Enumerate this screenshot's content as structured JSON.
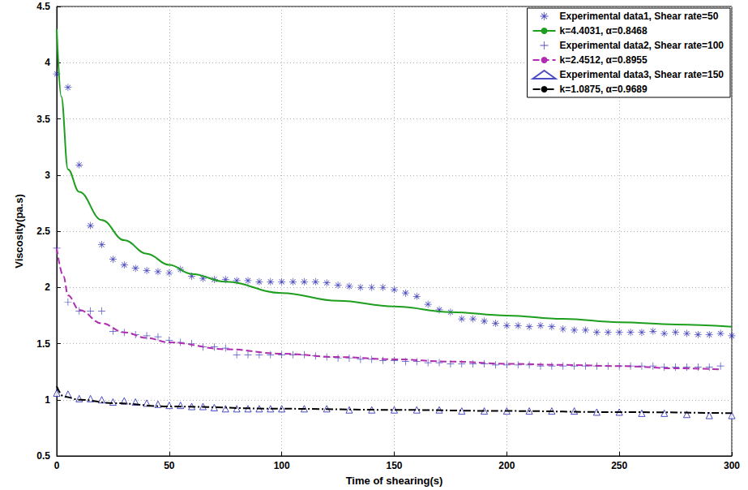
{
  "chart_data": {
    "type": "scatter",
    "x_label": "Time of shearing(s)",
    "y_label": "Viscosity(pa.s)",
    "xlim": [
      0,
      300
    ],
    "xticks": [
      0,
      50,
      100,
      150,
      200,
      250,
      300
    ],
    "ylim": [
      0.5,
      4.5
    ],
    "yticks": [
      0.5,
      1,
      1.5,
      2,
      2.5,
      3,
      3.5,
      4,
      4.5
    ],
    "grid": true,
    "legend": "top-right",
    "series": [
      {
        "name": "Experimental data1, Shear rate=50",
        "type": "scatter",
        "marker": "asterisk",
        "color": "#1f1fb4",
        "x": [
          0,
          5,
          10,
          15,
          20,
          25,
          30,
          35,
          40,
          45,
          50,
          55,
          60,
          65,
          70,
          75,
          80,
          85,
          90,
          95,
          100,
          105,
          110,
          115,
          120,
          125,
          130,
          135,
          140,
          145,
          150,
          155,
          160,
          165,
          170,
          175,
          180,
          185,
          190,
          195,
          200,
          205,
          210,
          215,
          220,
          225,
          230,
          235,
          240,
          245,
          250,
          255,
          260,
          265,
          270,
          275,
          280,
          285,
          290,
          295,
          300
        ],
        "values": [
          3.9,
          3.78,
          3.09,
          2.55,
          2.38,
          2.25,
          2.2,
          2.17,
          2.15,
          2.14,
          2.13,
          2.16,
          2.1,
          2.08,
          2.07,
          2.07,
          2.06,
          2.06,
          2.05,
          2.05,
          2.05,
          2.05,
          2.05,
          2.05,
          2.04,
          2.02,
          2.01,
          2.0,
          2.0,
          2.0,
          1.98,
          1.95,
          1.92,
          1.85,
          1.8,
          1.78,
          1.72,
          1.72,
          1.7,
          1.68,
          1.66,
          1.66,
          1.65,
          1.66,
          1.65,
          1.63,
          1.62,
          1.62,
          1.6,
          1.6,
          1.6,
          1.6,
          1.6,
          1.61,
          1.59,
          1.6,
          1.59,
          1.58,
          1.58,
          1.59,
          1.57
        ]
      },
      {
        "name": "k=4.4031, α=0.8468",
        "type": "line",
        "line_style": "solid",
        "color": "#1e9e1e",
        "x": [
          0,
          2,
          5,
          10,
          20,
          30,
          40,
          50,
          60,
          75,
          100,
          125,
          150,
          175,
          200,
          225,
          250,
          275,
          300
        ],
        "values": [
          4.3,
          3.7,
          3.05,
          2.85,
          2.6,
          2.42,
          2.3,
          2.2,
          2.12,
          2.05,
          1.95,
          1.88,
          1.83,
          1.78,
          1.75,
          1.72,
          1.69,
          1.67,
          1.65
        ]
      },
      {
        "name": "Experimental data2, Shear rate=100",
        "type": "scatter",
        "marker": "plus",
        "color": "#1f1fb4",
        "x": [
          0,
          5,
          10,
          15,
          20,
          25,
          30,
          35,
          40,
          45,
          50,
          55,
          60,
          65,
          70,
          75,
          80,
          85,
          90,
          95,
          100,
          105,
          110,
          115,
          120,
          125,
          130,
          135,
          140,
          145,
          150,
          155,
          160,
          165,
          170,
          175,
          180,
          185,
          190,
          195,
          200,
          205,
          210,
          215,
          220,
          225,
          230,
          235,
          240,
          245,
          250,
          255,
          260,
          265,
          270,
          275,
          280,
          285,
          290,
          295
        ],
        "values": [
          2.35,
          1.87,
          1.79,
          1.79,
          1.79,
          1.61,
          1.6,
          1.58,
          1.57,
          1.56,
          1.53,
          1.51,
          1.5,
          1.47,
          1.47,
          1.46,
          1.4,
          1.4,
          1.4,
          1.4,
          1.4,
          1.4,
          1.4,
          1.39,
          1.38,
          1.37,
          1.37,
          1.36,
          1.36,
          1.35,
          1.35,
          1.34,
          1.34,
          1.33,
          1.33,
          1.32,
          1.32,
          1.32,
          1.32,
          1.31,
          1.31,
          1.31,
          1.31,
          1.3,
          1.3,
          1.3,
          1.3,
          1.3,
          1.3,
          1.3,
          1.3,
          1.3,
          1.3,
          1.3,
          1.29,
          1.29,
          1.29,
          1.29,
          1.29,
          1.3
        ]
      },
      {
        "name": "k=2.4512, α=0.8955",
        "type": "line",
        "line_style": "dashed",
        "color": "#b02cb0",
        "x": [
          0,
          3,
          5,
          10,
          20,
          30,
          40,
          50,
          75,
          100,
          125,
          150,
          175,
          200,
          225,
          250,
          275,
          295
        ],
        "values": [
          2.35,
          2.1,
          1.93,
          1.8,
          1.68,
          1.6,
          1.55,
          1.51,
          1.45,
          1.41,
          1.38,
          1.36,
          1.34,
          1.32,
          1.31,
          1.3,
          1.28,
          1.27
        ]
      },
      {
        "name": "Experimental data3, Shear rate=150",
        "type": "scatter",
        "marker": "triangle",
        "color": "#1f1fb4",
        "x": [
          0,
          5,
          10,
          15,
          20,
          25,
          30,
          35,
          40,
          45,
          50,
          55,
          60,
          65,
          70,
          75,
          80,
          85,
          90,
          95,
          100,
          110,
          120,
          130,
          140,
          150,
          160,
          170,
          180,
          190,
          200,
          210,
          220,
          230,
          240,
          250,
          260,
          270,
          280,
          290,
          300
        ],
        "values": [
          1.06,
          1.05,
          1.01,
          1.01,
          1.0,
          0.98,
          0.99,
          0.98,
          0.97,
          0.96,
          0.95,
          0.95,
          0.94,
          0.94,
          0.93,
          0.92,
          0.92,
          0.92,
          0.92,
          0.92,
          0.92,
          0.92,
          0.92,
          0.91,
          0.91,
          0.91,
          0.91,
          0.91,
          0.9,
          0.9,
          0.9,
          0.9,
          0.9,
          0.9,
          0.89,
          0.89,
          0.88,
          0.88,
          0.87,
          0.86,
          0.86
        ]
      },
      {
        "name": "k=1.0875, α=0.9689",
        "type": "line",
        "line_style": "dashdot",
        "color": "#000000",
        "x": [
          0,
          3,
          10,
          25,
          50,
          100,
          150,
          200,
          250,
          300
        ],
        "values": [
          1.12,
          1.03,
          1.0,
          0.97,
          0.94,
          0.92,
          0.91,
          0.9,
          0.89,
          0.88
        ]
      }
    ]
  }
}
